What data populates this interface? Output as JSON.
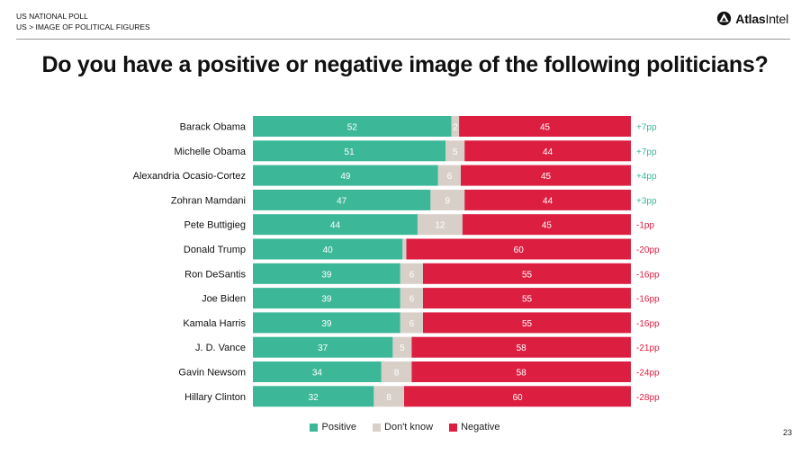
{
  "header": {
    "line1": "US NATIONAL POLL",
    "line2": "US > IMAGE OF POLITICAL FIGURES",
    "brand_bold": "Atlas",
    "brand_rest": "Intel",
    "brand_icon": "atlasintel-logo-icon"
  },
  "title": "Do you have a positive or negative image of the following politicians?",
  "colors": {
    "positive": "#3cb899",
    "dont_know": "#d9cfc9",
    "negative": "#dc1e41",
    "net_positive": "#3cb899",
    "net_negative": "#dc1e41"
  },
  "chart_data": {
    "type": "bar",
    "orientation": "horizontal",
    "stacked": true,
    "categories": [
      "Barack Obama",
      "Michelle Obama",
      "Alexandria Ocasio-Cortez",
      "Zohran Mamdani",
      "Pete Buttigieg",
      "Donald Trump",
      "Ron DeSantis",
      "Joe Biden",
      "Kamala Harris",
      "J. D. Vance",
      "Gavin Newsom",
      "Hillary Clinton"
    ],
    "series": [
      {
        "name": "Positive",
        "values": [
          52,
          51,
          49,
          47,
          44,
          40,
          39,
          39,
          39,
          37,
          34,
          32
        ]
      },
      {
        "name": "Don't know",
        "values": [
          2,
          5,
          6,
          9,
          12,
          1,
          6,
          6,
          6,
          5,
          8,
          8
        ]
      },
      {
        "name": "Negative",
        "values": [
          45,
          44,
          45,
          44,
          45,
          60,
          55,
          55,
          55,
          58,
          58,
          60
        ]
      }
    ],
    "dont_know_labels": [
      "2",
      "5",
      "6",
      "9",
      "12",
      "",
      "6",
      "6",
      "6",
      "5",
      "8",
      "8"
    ],
    "net": [
      "+7pp",
      "+7pp",
      "+4pp",
      "+3pp",
      "-1pp",
      "-20pp",
      "-16pp",
      "-16pp",
      "-16pp",
      "-21pp",
      "-24pp",
      "-28pp"
    ],
    "xlim": [
      0,
      100
    ],
    "legend_position": "bottom",
    "grid": false
  },
  "legend": {
    "positive": "Positive",
    "dont_know": "Don't know",
    "negative": "Negative"
  },
  "page_number": "23"
}
